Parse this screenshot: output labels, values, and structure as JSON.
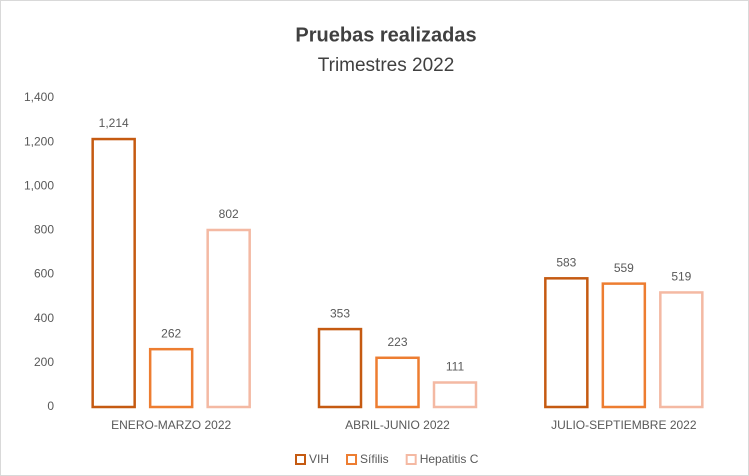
{
  "chart_data": {
    "type": "bar",
    "title": "Pruebas realizadas",
    "subtitle": "Trimestres 2022",
    "categories": [
      "ENERO-MARZO 2022",
      "ABRIL-JUNIO 2022",
      "JULIO-SEPTIEMBRE 2022"
    ],
    "series": [
      {
        "name": "VIH",
        "color": "#c55a11",
        "values": [
          1214,
          353,
          583
        ],
        "value_labels": [
          "1,214",
          "353",
          "583"
        ]
      },
      {
        "name": "Sífilis",
        "color": "#ed7d31",
        "values": [
          262,
          223,
          559
        ],
        "value_labels": [
          "262",
          "223",
          "559"
        ]
      },
      {
        "name": "Hepatitis C",
        "color": "#f4b9a3",
        "values": [
          802,
          111,
          519
        ],
        "value_labels": [
          "802",
          "111",
          "519"
        ]
      }
    ],
    "ylim": [
      0,
      1400
    ],
    "yticks": [
      0,
      200,
      400,
      600,
      800,
      {
        "value": 1000,
        "label": "1,000"
      },
      {
        "value": 1200,
        "label": "1,200"
      },
      {
        "value": 1400,
        "label": "1,400"
      }
    ],
    "grid": false,
    "legend": "bottom"
  }
}
